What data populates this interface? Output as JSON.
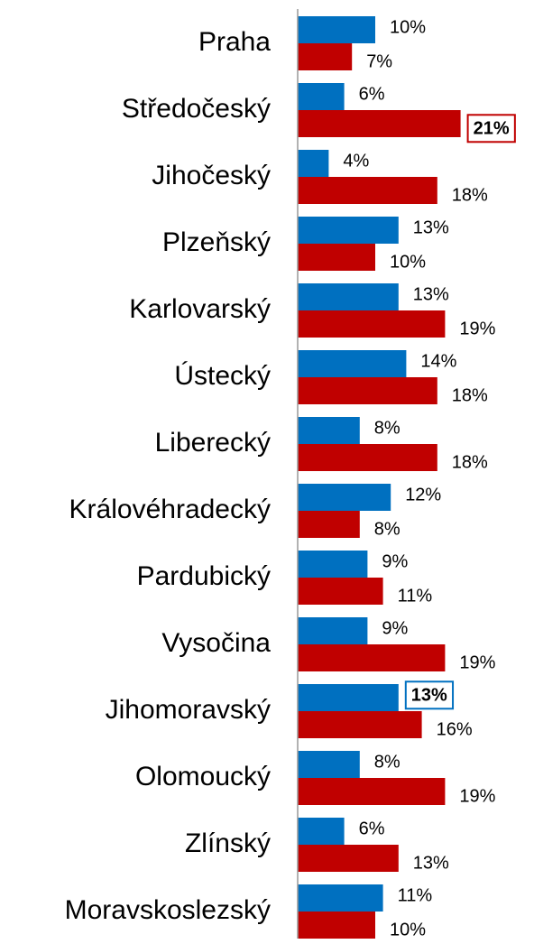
{
  "chart_data": {
    "type": "hbar",
    "categories": [
      "Praha",
      "Středočeský",
      "Jihočeský",
      "Plzeňský",
      "Karlovarský",
      "Ústecký",
      "Liberecký",
      "Královéhradecký",
      "Pardubický",
      "Vysočina",
      "Jihomoravský",
      "Olomoucký",
      "Zlínský",
      "Moravskoslezský"
    ],
    "series": [
      {
        "color": "#0070c0",
        "values": [
          10,
          6,
          4,
          13,
          13,
          14,
          8,
          12,
          9,
          9,
          13,
          8,
          6,
          11
        ],
        "value_labels": [
          "10%",
          "6%",
          "4%",
          "13%",
          "13%",
          "14%",
          "8%",
          "12%",
          "9%",
          "9%",
          "13%",
          "8%",
          "6%",
          "11%"
        ],
        "highlight": [
          10
        ]
      },
      {
        "color": "#c00000",
        "values": [
          7,
          21,
          18,
          10,
          19,
          18,
          18,
          8,
          11,
          19,
          16,
          19,
          13,
          10
        ],
        "value_labels": [
          "7%",
          "21%",
          "18%",
          "10%",
          "19%",
          "18%",
          "18%",
          "8%",
          "11%",
          "19%",
          "16%",
          "19%",
          "13%",
          "10%"
        ],
        "highlight": [
          1
        ]
      }
    ],
    "xlim": [
      0,
      30
    ]
  }
}
